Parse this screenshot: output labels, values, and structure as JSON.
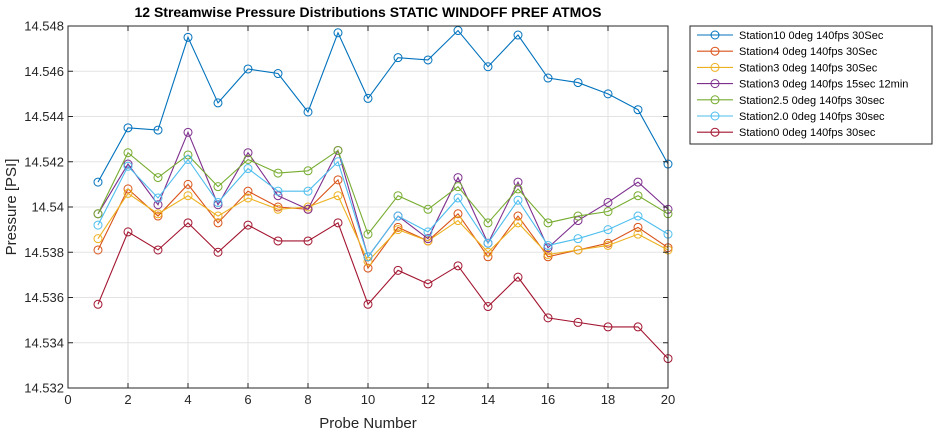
{
  "chart_data": {
    "type": "line",
    "title": "12 Streamwise Pressure Distributions STATIC WINDOFF PREF ATMOS",
    "xlabel": "Probe Number",
    "ylabel": "Pressure [PSI]",
    "xlim": [
      0,
      20
    ],
    "ylim": [
      14.532,
      14.548
    ],
    "xticks": [
      0,
      2,
      4,
      6,
      8,
      10,
      12,
      14,
      16,
      18,
      20
    ],
    "xtick_labels": [
      "0",
      "2",
      "4",
      "6",
      "8",
      "10",
      "12",
      "14",
      "16",
      "18",
      "20"
    ],
    "yticks": [
      14.532,
      14.534,
      14.536,
      14.538,
      14.54,
      14.542,
      14.544,
      14.546,
      14.548
    ],
    "ytick_labels": [
      "14.532",
      "14.534",
      "14.536",
      "14.538",
      "14.54",
      "14.542",
      "14.544",
      "14.546",
      "14.548"
    ],
    "grid": true,
    "legend_position": "outside-top-right",
    "x": [
      1,
      2,
      3,
      4,
      5,
      6,
      7,
      8,
      9,
      10,
      11,
      12,
      13,
      14,
      15,
      16,
      17,
      18,
      19,
      20
    ],
    "series": [
      {
        "name": "Station10 0deg 140fps 30Sec",
        "color": "#0072BD",
        "values": [
          14.5411,
          14.5435,
          14.5434,
          14.5475,
          14.5446,
          14.5461,
          14.5459,
          14.5442,
          14.5477,
          14.5448,
          14.5466,
          14.5465,
          14.5478,
          14.5462,
          14.5476,
          14.5457,
          14.5455,
          14.545,
          14.5443,
          14.5419
        ]
      },
      {
        "name": "Station4 0deg 140fps 30Sec",
        "color": "#D95319",
        "values": [
          14.5381,
          14.5408,
          14.5396,
          14.541,
          14.5393,
          14.5407,
          14.54,
          14.5399,
          14.5412,
          14.5373,
          14.5391,
          14.5385,
          14.5397,
          14.5378,
          14.5396,
          14.5378,
          14.5381,
          14.5384,
          14.5391,
          14.5382
        ]
      },
      {
        "name": "Station3 0deg 140fps 30Sec",
        "color": "#EDB120",
        "values": [
          14.5386,
          14.5406,
          14.5397,
          14.5405,
          14.5396,
          14.5404,
          14.5399,
          14.54,
          14.5405,
          14.5376,
          14.539,
          14.5385,
          14.5394,
          14.538,
          14.5393,
          14.5379,
          14.5381,
          14.5383,
          14.5388,
          14.5381
        ]
      },
      {
        "name": "Station3 0deg 140fps 15sec 12min",
        "color": "#7E2F8E",
        "values": [
          14.5397,
          14.5419,
          14.5401,
          14.5433,
          14.5401,
          14.5424,
          14.5405,
          14.5399,
          14.5425,
          14.5378,
          14.5396,
          14.5386,
          14.5413,
          14.5384,
          14.5411,
          14.5382,
          14.5394,
          14.5402,
          14.5411,
          14.5399
        ]
      },
      {
        "name": "Station2.5 0deg 140fps 30sec",
        "color": "#77AC30",
        "values": [
          14.5397,
          14.5424,
          14.5413,
          14.5423,
          14.5409,
          14.5421,
          14.5415,
          14.5416,
          14.5425,
          14.5388,
          14.5405,
          14.5399,
          14.5409,
          14.5393,
          14.5408,
          14.5393,
          14.5396,
          14.5398,
          14.5405,
          14.5397
        ]
      },
      {
        "name": "Station2.0 0deg 140fps 30sec",
        "color": "#4DBEEE",
        "values": [
          14.5392,
          14.5418,
          14.5404,
          14.5421,
          14.5402,
          14.5417,
          14.5407,
          14.5407,
          14.542,
          14.5378,
          14.5396,
          14.5389,
          14.5404,
          14.5384,
          14.5403,
          14.5383,
          14.5386,
          14.539,
          14.5396,
          14.5388
        ]
      },
      {
        "name": "Station0 0deg 140fps 30sec",
        "color": "#A2142F",
        "values": [
          14.5357,
          14.5389,
          14.5381,
          14.5393,
          14.538,
          14.5392,
          14.5385,
          14.5385,
          14.5393,
          14.5357,
          14.5372,
          14.5366,
          14.5374,
          14.5356,
          14.5369,
          14.5351,
          14.5349,
          14.5347,
          14.5347,
          14.5333
        ]
      }
    ]
  }
}
